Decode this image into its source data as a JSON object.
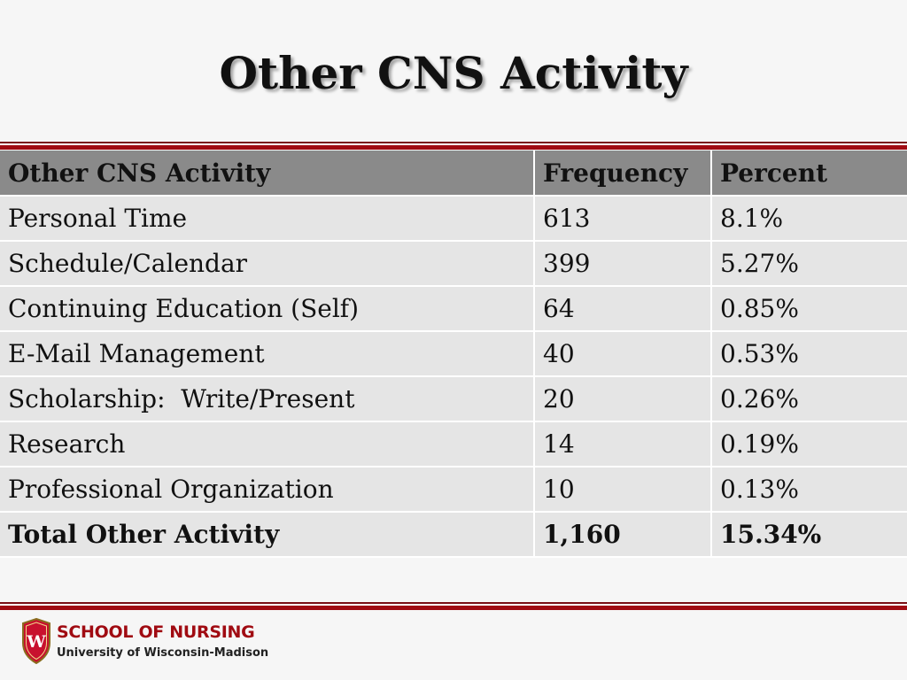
{
  "slide": {
    "title": "Other CNS Activity"
  },
  "table": {
    "headers": [
      "Other CNS Activity",
      "Frequency",
      "Percent"
    ],
    "rows": [
      [
        "Personal Time",
        "613",
        "8.1%"
      ],
      [
        "Schedule/Calendar",
        "399",
        "5.27%"
      ],
      [
        "Continuing Education (Self)",
        "64",
        "0.85%"
      ],
      [
        "E-Mail Management",
        "40",
        "0.53%"
      ],
      [
        "Scholarship:  Write/Present",
        "20",
        "0.26%"
      ],
      [
        "Research",
        "14",
        "0.19%"
      ],
      [
        "Professional Organization",
        "10",
        "0.13%"
      ]
    ],
    "total": [
      "Total Other Activity",
      "1,160",
      "15.34%"
    ]
  },
  "footer": {
    "school_name": "SCHOOL OF NURSING",
    "university_name": "University of Wisconsin-Madison",
    "logo": "W",
    "brand_color": "#a00b12"
  }
}
